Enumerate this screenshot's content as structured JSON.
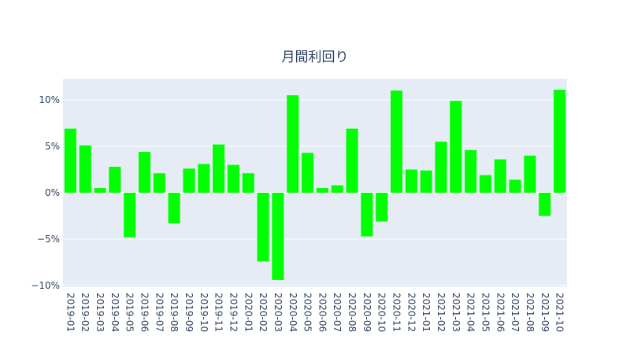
{
  "chart_data": {
    "type": "bar",
    "title": "月間利回り",
    "categories": [
      "2019-01",
      "2019-02",
      "2019-03",
      "2019-04",
      "2019-05",
      "2019-06",
      "2019-07",
      "2019-08",
      "2019-09",
      "2019-10",
      "2019-11",
      "2019-12",
      "2020-01",
      "2020-02",
      "2020-03",
      "2020-04",
      "2020-05",
      "2020-06",
      "2020-07",
      "2020-08",
      "2020-09",
      "2020-10",
      "2020-11",
      "2020-12",
      "2021-01",
      "2021-02",
      "2021-03",
      "2021-04",
      "2021-05",
      "2021-06",
      "2021-07",
      "2021-08",
      "2021-09",
      "2021-10"
    ],
    "values": [
      6.9,
      5.1,
      0.5,
      2.8,
      -4.8,
      4.4,
      2.1,
      -3.3,
      2.6,
      3.1,
      5.2,
      3.0,
      2.1,
      -7.4,
      -9.4,
      10.5,
      4.3,
      0.5,
      0.8,
      6.9,
      -4.7,
      -3.1,
      11.0,
      2.5,
      2.4,
      5.5,
      9.9,
      4.6,
      1.9,
      3.6,
      1.4,
      4.0,
      -2.5,
      11.1
    ],
    "color": "#00ff00",
    "ylim": [
      -10.17,
      12.29
    ],
    "yticks": [
      {
        "value": -10,
        "label": "−10%"
      },
      {
        "value": -5,
        "label": "−5%"
      },
      {
        "value": 0,
        "label": "0%"
      },
      {
        "value": 5,
        "label": "5%"
      },
      {
        "value": 10,
        "label": "10%"
      }
    ],
    "grid": true
  }
}
